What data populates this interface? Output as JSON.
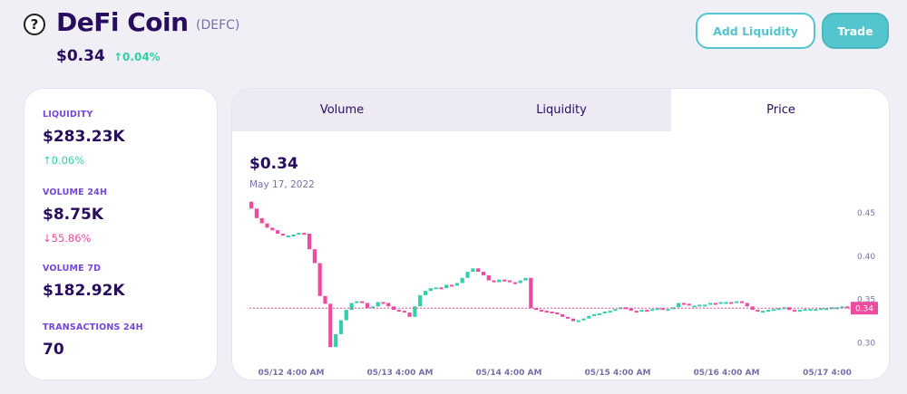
{
  "header": {
    "help_icon": "question-circle-icon",
    "coin_name": "DeFi Coin",
    "coin_symbol": "(DEFC)",
    "price": "$0.34",
    "change": "↑0.04%",
    "add_liquidity_label": "Add Liquidity",
    "trade_label": "Trade"
  },
  "stats": [
    {
      "label": "LIQUIDITY",
      "value": "$283.23K",
      "change": "↑0.06%",
      "direction": "up"
    },
    {
      "label": "VOLUME 24H",
      "value": "$8.75K",
      "change": "↓55.86%",
      "direction": "down"
    },
    {
      "label": "VOLUME 7D",
      "value": "$182.92K",
      "change": "",
      "direction": ""
    },
    {
      "label": "TRANSACTIONS 24H",
      "value": "70",
      "change": "",
      "direction": ""
    }
  ],
  "tabs": [
    {
      "label": "Volume",
      "active": false
    },
    {
      "label": "Liquidity",
      "active": false
    },
    {
      "label": "Price",
      "active": true
    }
  ],
  "chart_header": {
    "price": "$0.34",
    "date": "May 17, 2022"
  },
  "colors": {
    "up": "#31d0aa",
    "down": "#ed4b9e",
    "accent": "#53c5cf",
    "text": "#280d5f"
  },
  "chart_data": {
    "type": "candlestick",
    "y_ticks": [
      "0.45",
      "0.40",
      "0.35",
      "0.30"
    ],
    "y_tick_values": [
      0.45,
      0.4,
      0.35,
      0.3
    ],
    "ylim": [
      0.29,
      0.47
    ],
    "x_ticks": [
      "05/12 4:00 AM",
      "05/13 4:00 AM",
      "05/14 4:00 AM",
      "05/15 4:00 AM",
      "05/16 4:00 AM",
      "05/17 4:00"
    ],
    "current_price_label": "0.34",
    "current_price": 0.34,
    "close_series": [
      0.455,
      0.444,
      0.438,
      0.433,
      0.43,
      0.426,
      0.424,
      0.424,
      0.425,
      0.427,
      0.426,
      0.408,
      0.392,
      0.354,
      0.345,
      0.295,
      0.31,
      0.326,
      0.338,
      0.346,
      0.348,
      0.346,
      0.34,
      0.342,
      0.347,
      0.346,
      0.342,
      0.338,
      0.337,
      0.335,
      0.33,
      0.342,
      0.355,
      0.36,
      0.363,
      0.364,
      0.363,
      0.367,
      0.366,
      0.369,
      0.375,
      0.382,
      0.386,
      0.382,
      0.378,
      0.372,
      0.37,
      0.373,
      0.372,
      0.37,
      0.369,
      0.372,
      0.375,
      0.34,
      0.338,
      0.337,
      0.336,
      0.335,
      0.333,
      0.33,
      0.328,
      0.325,
      0.326,
      0.328,
      0.331,
      0.333,
      0.334,
      0.336,
      0.337,
      0.339,
      0.341,
      0.34,
      0.337,
      0.336,
      0.338,
      0.337,
      0.339,
      0.34,
      0.338,
      0.339,
      0.341,
      0.346,
      0.345,
      0.343,
      0.343,
      0.344,
      0.344,
      0.346,
      0.345,
      0.347,
      0.347,
      0.346,
      0.348,
      0.346,
      0.342,
      0.338,
      0.336,
      0.337,
      0.338,
      0.339,
      0.34,
      0.341,
      0.338,
      0.337,
      0.338,
      0.339,
      0.339,
      0.339,
      0.34,
      0.34,
      0.341,
      0.341,
      0.342,
      0.34
    ]
  }
}
